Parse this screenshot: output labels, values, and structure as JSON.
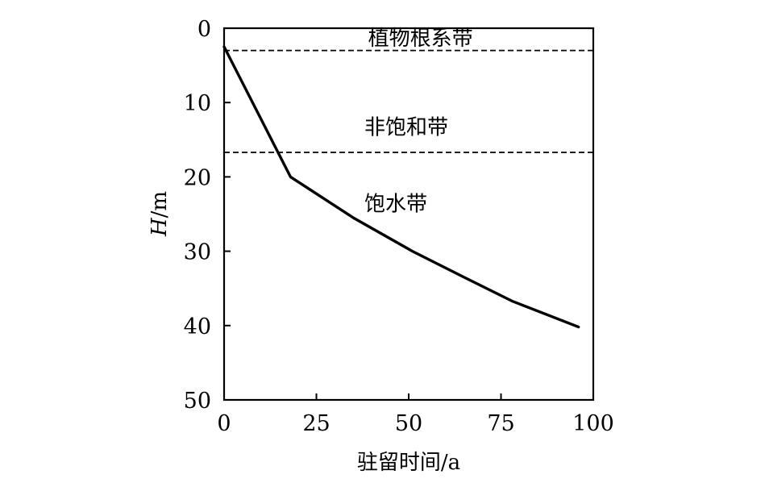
{
  "chart_data": {
    "type": "line",
    "title": "",
    "xlabel": "驻留时间/a",
    "ylabel": "H/m",
    "ylabel_italic": "H",
    "ylabel_unit": "/m",
    "xlim": [
      0,
      100
    ],
    "ylim": [
      0,
      50
    ],
    "y_inverted": true,
    "x_ticks": [
      0,
      25,
      50,
      75,
      100
    ],
    "y_ticks": [
      0,
      10,
      20,
      30,
      40,
      50
    ],
    "grid": false,
    "series": [
      {
        "x": [
          0,
          18,
          35,
          51,
          65,
          78,
          96
        ],
        "y": [
          2.5,
          20,
          25.5,
          30,
          33.5,
          36.7,
          40.2
        ]
      }
    ],
    "zone_boundaries": [
      3,
      16.7
    ],
    "zones": [
      {
        "label": "植物根系带",
        "x": 39,
        "y": 1.2
      },
      {
        "label": "非饱和带",
        "x": 38,
        "y": 13.2
      },
      {
        "label": "饱水带",
        "x": 38,
        "y": 23.5
      }
    ]
  }
}
